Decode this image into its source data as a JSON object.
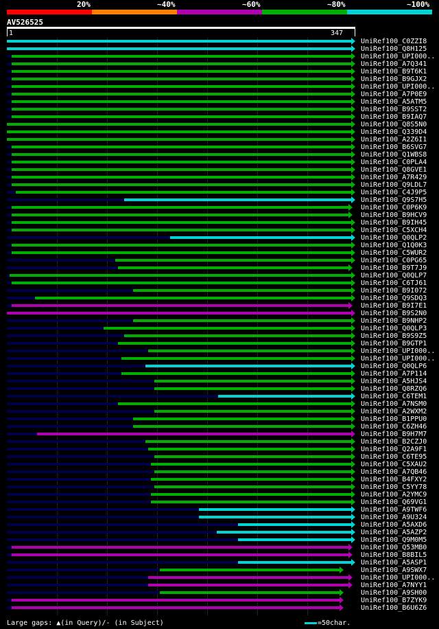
{
  "query": {
    "name": "AV526525",
    "start": "1",
    "end": "347",
    "length": 347
  },
  "scale": {
    "labels": [
      "20%",
      "~40%",
      "~60%",
      "~80%",
      "~100%"
    ],
    "colors": [
      "#ff0000",
      "#ff7f00",
      "#b000b0",
      "#00b000",
      "#00d4d4"
    ]
  },
  "footer": {
    "text": "Large gaps: ▲(in Query)/- (in Subject)",
    "legend_text": "=50char."
  },
  "colors": {
    "cyan": "#00d4d4",
    "green": "#00b000",
    "magenta": "#b000b0",
    "backbone": "#00004a"
  },
  "hits": [
    {
      "name": "UniRef100_C0ZZI8",
      "start": 1,
      "end": 347,
      "color": "cyan"
    },
    {
      "name": "UniRef100_Q8H125",
      "start": 1,
      "end": 347,
      "color": "cyan"
    },
    {
      "name": "UniRef100_UPI000..",
      "start": 6,
      "end": 347,
      "color": "green"
    },
    {
      "name": "UniRef100_A7Q341",
      "start": 6,
      "end": 347,
      "color": "green"
    },
    {
      "name": "UniRef100_B9T6K1",
      "start": 6,
      "end": 347,
      "color": "green"
    },
    {
      "name": "UniRef100_B9GJX2",
      "start": 6,
      "end": 347,
      "color": "green"
    },
    {
      "name": "UniRef100_UPI000..",
      "start": 6,
      "end": 347,
      "color": "green"
    },
    {
      "name": "UniRef100_A7P0E9",
      "start": 6,
      "end": 347,
      "color": "green"
    },
    {
      "name": "UniRef100_A5ATM5",
      "start": 6,
      "end": 347,
      "color": "green"
    },
    {
      "name": "UniRef100_B9SST2",
      "start": 6,
      "end": 347,
      "color": "green"
    },
    {
      "name": "UniRef100_B9IAQ7",
      "start": 6,
      "end": 347,
      "color": "green"
    },
    {
      "name": "UniRef100_Q8S5N0",
      "start": 1,
      "end": 347,
      "color": "green"
    },
    {
      "name": "UniRef100_Q339D4",
      "start": 1,
      "end": 347,
      "color": "green"
    },
    {
      "name": "UniRef100_A2Z6I1",
      "start": 1,
      "end": 347,
      "color": "green"
    },
    {
      "name": "UniRef100_B6SVG7",
      "start": 6,
      "end": 347,
      "color": "green"
    },
    {
      "name": "UniRef100_Q1WBS8",
      "start": 6,
      "end": 347,
      "color": "green"
    },
    {
      "name": "UniRef100_C0PLA4",
      "start": 6,
      "end": 347,
      "color": "green"
    },
    {
      "name": "UniRef100_Q8GVE1",
      "start": 6,
      "end": 347,
      "color": "green"
    },
    {
      "name": "UniRef100_A7R429",
      "start": 6,
      "end": 347,
      "color": "green"
    },
    {
      "name": "UniRef100_Q9LDL7",
      "start": 6,
      "end": 347,
      "color": "green"
    },
    {
      "name": "UniRef100_C4J9P5",
      "start": 10,
      "end": 347,
      "color": "green"
    },
    {
      "name": "UniRef100_Q9S7H5",
      "start": 119,
      "end": 347,
      "color": "cyan"
    },
    {
      "name": "UniRef100_C0P6K9",
      "start": 6,
      "end": 344,
      "color": "green"
    },
    {
      "name": "UniRef100_B9HCV9",
      "start": 6,
      "end": 344,
      "color": "green"
    },
    {
      "name": "UniRef100_B9IH45",
      "start": 6,
      "end": 347,
      "color": "green"
    },
    {
      "name": "UniRef100_C5XCH4",
      "start": 6,
      "end": 347,
      "color": "green"
    },
    {
      "name": "UniRef100_Q0QLP2",
      "start": 165,
      "end": 347,
      "color": "cyan"
    },
    {
      "name": "UniRef100_Q1Q0K3",
      "start": 6,
      "end": 347,
      "color": "green"
    },
    {
      "name": "UniRef100_C5WUR2",
      "start": 6,
      "end": 347,
      "color": "green"
    },
    {
      "name": "UniRef100_C0PG65",
      "start": 110,
      "end": 347,
      "color": "green"
    },
    {
      "name": "UniRef100_B9T7J9",
      "start": 113,
      "end": 344,
      "color": "green"
    },
    {
      "name": "UniRef100_Q0QLP7",
      "start": 4,
      "end": 347,
      "color": "green"
    },
    {
      "name": "UniRef100_C6TJ61",
      "start": 6,
      "end": 347,
      "color": "green"
    },
    {
      "name": "UniRef100_B9I072",
      "start": 128,
      "end": 347,
      "color": "green"
    },
    {
      "name": "UniRef100_Q9SDQ3",
      "start": 29,
      "end": 347,
      "color": "green"
    },
    {
      "name": "UniRef100_B9I7E1",
      "start": 6,
      "end": 344,
      "color": "magenta"
    },
    {
      "name": "UniRef100_B9S2N0",
      "start": 1,
      "end": 347,
      "color": "magenta"
    },
    {
      "name": "UniRef100_B9NHP2",
      "start": 128,
      "end": 347,
      "color": "green"
    },
    {
      "name": "UniRef100_Q0QLP3",
      "start": 98,
      "end": 347,
      "color": "green"
    },
    {
      "name": "UniRef100_B9S9Z5",
      "start": 119,
      "end": 347,
      "color": "green"
    },
    {
      "name": "UniRef100_B9GTP1",
      "start": 113,
      "end": 347,
      "color": "green"
    },
    {
      "name": "UniRef100_UPI000..",
      "start": 143,
      "end": 347,
      "color": "green"
    },
    {
      "name": "UniRef100_UPI000..",
      "start": 116,
      "end": 347,
      "color": "green"
    },
    {
      "name": "UniRef100_Q0QLP6",
      "start": 140,
      "end": 347,
      "color": "cyan"
    },
    {
      "name": "UniRef100_A7P114",
      "start": 116,
      "end": 347,
      "color": "green"
    },
    {
      "name": "UniRef100_A5HJS4",
      "start": 149,
      "end": 347,
      "color": "green"
    },
    {
      "name": "UniRef100_Q8RZQ6",
      "start": 149,
      "end": 347,
      "color": "green"
    },
    {
      "name": "UniRef100_C6TEM1",
      "start": 213,
      "end": 347,
      "color": "cyan"
    },
    {
      "name": "UniRef100_A7NSM0",
      "start": 113,
      "end": 347,
      "color": "green"
    },
    {
      "name": "UniRef100_A2WXM2",
      "start": 149,
      "end": 347,
      "color": "green"
    },
    {
      "name": "UniRef100_B1PPU0",
      "start": 128,
      "end": 347,
      "color": "green"
    },
    {
      "name": "UniRef100_C6ZH46",
      "start": 128,
      "end": 347,
      "color": "green"
    },
    {
      "name": "UniRef100_B9H7M7",
      "start": 31,
      "end": 347,
      "color": "magenta"
    },
    {
      "name": "UniRef100_B2CZJ0",
      "start": 140,
      "end": 347,
      "color": "green"
    },
    {
      "name": "UniRef100_Q2A9F1",
      "start": 143,
      "end": 347,
      "color": "green"
    },
    {
      "name": "UniRef100_C6TE95",
      "start": 149,
      "end": 347,
      "color": "green"
    },
    {
      "name": "UniRef100_C5XAU2",
      "start": 146,
      "end": 347,
      "color": "green"
    },
    {
      "name": "UniRef100_A7QB46",
      "start": 149,
      "end": 347,
      "color": "green"
    },
    {
      "name": "UniRef100_B4FXY2",
      "start": 146,
      "end": 347,
      "color": "green"
    },
    {
      "name": "UniRef100_C5YY78",
      "start": 149,
      "end": 347,
      "color": "green"
    },
    {
      "name": "UniRef100_A2YMC9",
      "start": 146,
      "end": 347,
      "color": "green"
    },
    {
      "name": "UniRef100_Q69VG1",
      "start": 146,
      "end": 347,
      "color": "green"
    },
    {
      "name": "UniRef100_A9TWF6",
      "start": 194,
      "end": 347,
      "color": "cyan"
    },
    {
      "name": "UniRef100_A9U324",
      "start": 194,
      "end": 347,
      "color": "cyan"
    },
    {
      "name": "UniRef100_A5AXD6",
      "start": 233,
      "end": 347,
      "color": "cyan"
    },
    {
      "name": "UniRef100_A5AZP2",
      "start": 212,
      "end": 347,
      "color": "cyan"
    },
    {
      "name": "UniRef100_Q9M0M5",
      "start": 233,
      "end": 347,
      "color": "cyan"
    },
    {
      "name": "UniRef100_Q53MB0",
      "start": 6,
      "end": 344,
      "color": "magenta"
    },
    {
      "name": "UniRef100_B8BIL5",
      "start": 6,
      "end": 344,
      "color": "magenta"
    },
    {
      "name": "UniRef100_A5ASP1",
      "start": 233,
      "end": 347,
      "color": "cyan"
    },
    {
      "name": "UniRef100_A9SWX7",
      "start": 155,
      "end": 335,
      "color": "green"
    },
    {
      "name": "UniRef100_UPI000..",
      "start": 143,
      "end": 344,
      "color": "magenta"
    },
    {
      "name": "UniRef100_A7NYY1",
      "start": 143,
      "end": 344,
      "color": "magenta"
    },
    {
      "name": "UniRef100_A9SH00",
      "start": 155,
      "end": 335,
      "color": "green"
    },
    {
      "name": "UniRef100_B7ZYK9",
      "start": 6,
      "end": 335,
      "color": "magenta"
    },
    {
      "name": "UniRef100_B6U6Z6",
      "start": 6,
      "end": 335,
      "color": "magenta"
    }
  ]
}
